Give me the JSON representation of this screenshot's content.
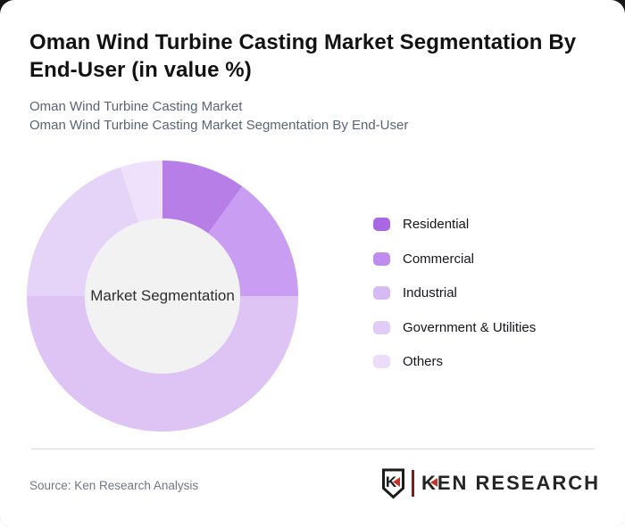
{
  "header": {
    "title": "Oman Wind Turbine Casting Market Segmentation By End-User (in value %)",
    "subtitle_line1": "Oman Wind Turbine Casting Market",
    "subtitle_line2": "Oman Wind Turbine Casting Market Segmentation By End-User"
  },
  "chart_data": {
    "type": "pie",
    "subtype": "donut",
    "title": "Oman Wind Turbine Casting Market Segmentation By End-User (in value %)",
    "center_label": "Market Segmentation",
    "categories": [
      "Residential",
      "Commercial",
      "Industrial",
      "Government & Utilities",
      "Others"
    ],
    "values": [
      10,
      15,
      50,
      20,
      5
    ],
    "unit": "value %",
    "colors": [
      "#aa67e3",
      "#bf8cee",
      "#d7baf3",
      "#e1ccf7",
      "#ecdcfa"
    ],
    "segment_fill_opacity": 0.85,
    "inner_circle_color": "#f2f2f2",
    "start_angle_deg": 0,
    "direction": "clockwise",
    "legend_position": "right",
    "outer_radius_px": 152,
    "inner_radius_px": 87
  },
  "footer": {
    "source": "Source: Ken Research Analysis",
    "logo": {
      "shield_letter": "K",
      "wordmark": "KEN RESEARCH",
      "accent_color": "#c0362c",
      "ink_color": "#1b1b1b"
    }
  }
}
